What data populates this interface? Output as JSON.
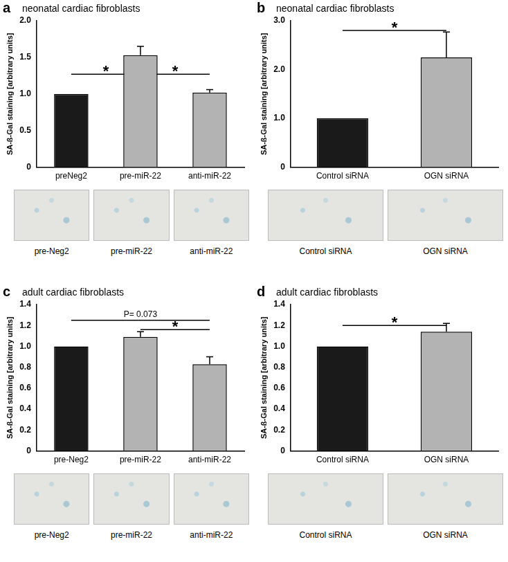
{
  "chart_data": [
    {
      "type": "bar",
      "panel": "a",
      "title": "neonatal cardiac fibroblasts",
      "y_label": "SA-ß-Gal staining [arbitrary units]",
      "categories": [
        "preNeg2",
        "pre-miR-22",
        "anti-miR-22"
      ],
      "values": [
        1.0,
        1.53,
        1.02
      ],
      "errors": [
        null,
        0.12,
        0.04
      ],
      "colors": [
        "#1a1a1a",
        "#b3b3b3",
        "#b3b3b3"
      ],
      "ylim": [
        0,
        2.0
      ],
      "yticks": [
        0,
        0.5,
        {
          "value": 1.0,
          "label": "1.0"
        },
        1.5,
        {
          "value": 2.0,
          "label": "2.0"
        }
      ],
      "annotations": [
        {
          "from": "preNeg2",
          "to": "pre-miR-22",
          "y": 1.27,
          "label": "*"
        },
        {
          "from": "pre-miR-22",
          "to": "anti-miR-22",
          "y": 1.27,
          "label": "*"
        }
      ],
      "image_labels": [
        "pre-Neg2",
        "pre-miR-22",
        "anti-miR-22"
      ]
    },
    {
      "type": "bar",
      "panel": "b",
      "title": "neonatal cardiac fibroblasts",
      "y_label": "SA-ß-Gal staining [arbitrary units]",
      "categories": [
        "Control siRNA",
        "OGN siRNA"
      ],
      "values": [
        1.0,
        2.25
      ],
      "errors": [
        null,
        0.52
      ],
      "colors": [
        "#1a1a1a",
        "#b3b3b3"
      ],
      "ylim": [
        0,
        3.0
      ],
      "yticks": [
        0,
        {
          "value": 1.0,
          "label": "1.0"
        },
        {
          "value": 2.0,
          "label": "2.0"
        },
        {
          "value": 3.0,
          "label": "3.0"
        }
      ],
      "annotations": [
        {
          "from": "Control siRNA",
          "to": "OGN siRNA",
          "y": 2.8,
          "label": "*"
        }
      ],
      "image_labels": [
        "Control siRNA",
        "OGN siRNA"
      ]
    },
    {
      "type": "bar",
      "panel": "c",
      "title": "adult cardiac fibroblasts",
      "y_label": "SA-ß-Gal staining [arbitrary units]",
      "categories": [
        "pre-Neg2",
        "pre-miR-22",
        "anti-miR-22"
      ],
      "values": [
        1.0,
        1.09,
        0.83
      ],
      "errors": [
        null,
        0.05,
        0.07
      ],
      "colors": [
        "#1a1a1a",
        "#b3b3b3",
        "#b3b3b3"
      ],
      "ylim": [
        0,
        1.4
      ],
      "yticks": [
        0,
        0.2,
        0.4,
        0.6,
        0.8,
        {
          "value": 1.0,
          "label": "1.0"
        },
        1.2,
        1.4
      ],
      "annotations": [
        {
          "from": "pre-Neg2",
          "to": "anti-miR-22",
          "y": 1.25,
          "label": "P= 0.073"
        },
        {
          "from": "pre-miR-22",
          "to": "anti-miR-22",
          "y": 1.16,
          "label": "*"
        }
      ],
      "image_labels": [
        "pre-Neg2",
        "pre-miR-22",
        "anti-miR-22"
      ]
    },
    {
      "type": "bar",
      "panel": "d",
      "title": "adult cardiac fibroblasts",
      "y_label": "SA-ß-Gal staining [arbitrary units]",
      "categories": [
        "Control siRNA",
        "OGN siRNA"
      ],
      "values": [
        1.0,
        1.14
      ],
      "errors": [
        null,
        0.08
      ],
      "colors": [
        "#1a1a1a",
        "#b3b3b3"
      ],
      "ylim": [
        0,
        1.4
      ],
      "yticks": [
        0,
        0.2,
        0.4,
        0.6,
        0.8,
        {
          "value": 1.0,
          "label": "1.0"
        },
        1.2,
        1.4
      ],
      "annotations": [
        {
          "from": "Control siRNA",
          "to": "OGN siRNA",
          "y": 1.2,
          "label": "*"
        }
      ],
      "image_labels": [
        "Control siRNA",
        "OGN siRNA"
      ]
    }
  ]
}
